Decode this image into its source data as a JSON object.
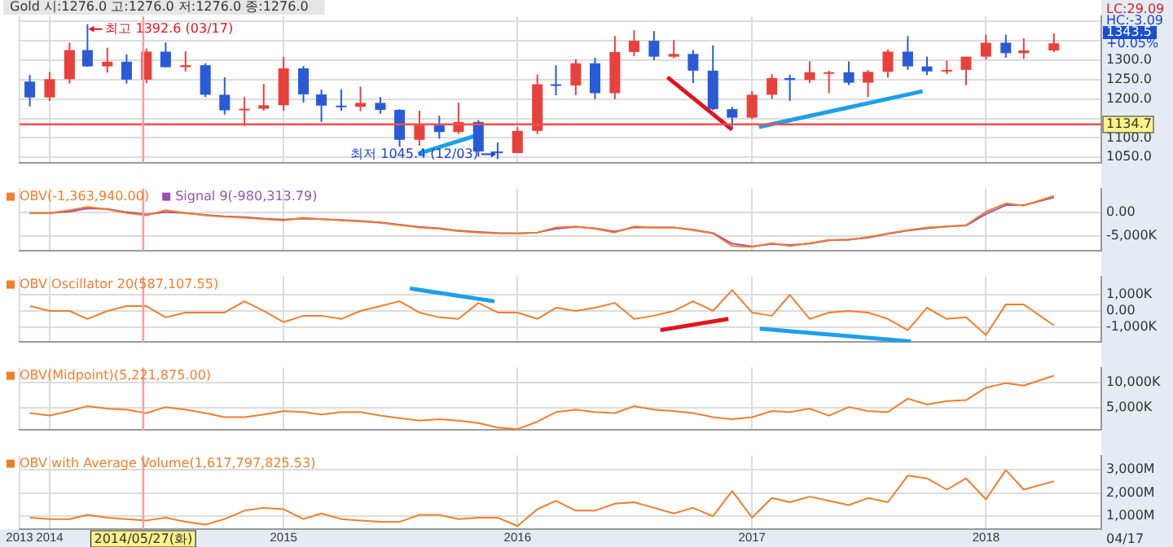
{
  "chart_data": [
    {
      "type": "candlestick",
      "title": "Gold 시:1276.0 고:1276.0 저:1276.0 종:1276.0",
      "x": [
        "2013-12",
        "2014-01",
        "2014-02",
        "2014-03",
        "2014-04",
        "2014-05",
        "2014-06",
        "2014-07",
        "2014-08",
        "2014-09",
        "2014-10",
        "2014-11",
        "2014-12",
        "2015-01",
        "2015-02",
        "2015-03",
        "2015-04",
        "2015-05",
        "2015-06",
        "2015-07",
        "2015-08",
        "2015-09",
        "2015-10",
        "2015-11",
        "2015-12",
        "2016-01",
        "2016-02",
        "2016-03",
        "2016-04",
        "2016-05",
        "2016-06",
        "2016-07",
        "2016-08",
        "2016-09",
        "2016-10",
        "2016-11",
        "2016-12",
        "2017-01",
        "2017-02",
        "2017-03",
        "2017-04",
        "2017-05",
        "2017-06",
        "2017-07",
        "2017-08",
        "2017-09",
        "2017-10",
        "2017-11",
        "2017-12",
        "2018-01",
        "2018-02",
        "2018-03",
        "2018-04-17"
      ],
      "ohlc": [
        [
          1245,
          1262,
          1181,
          1204
        ],
        [
          1204,
          1270,
          1195,
          1251
        ],
        [
          1251,
          1345,
          1240,
          1326
        ],
        [
          1326,
          1392.6,
          1283,
          1284
        ],
        [
          1284,
          1332,
          1268,
          1296
        ],
        [
          1296,
          1315,
          1240,
          1250
        ],
        [
          1250,
          1330,
          1241,
          1322
        ],
        [
          1322,
          1346,
          1281,
          1282
        ],
        [
          1282,
          1323,
          1271,
          1287
        ],
        [
          1287,
          1292,
          1205,
          1211
        ],
        [
          1211,
          1256,
          1160,
          1171
        ],
        [
          1171,
          1205,
          1130,
          1175
        ],
        [
          1175,
          1239,
          1170,
          1184
        ],
        [
          1184,
          1308,
          1170,
          1279
        ],
        [
          1279,
          1285,
          1191,
          1212
        ],
        [
          1212,
          1224,
          1141,
          1183
        ],
        [
          1183,
          1225,
          1170,
          1180
        ],
        [
          1180,
          1232,
          1169,
          1190
        ],
        [
          1190,
          1205,
          1162,
          1172
        ],
        [
          1172,
          1174,
          1077,
          1095
        ],
        [
          1095,
          1170,
          1080,
          1132
        ],
        [
          1132,
          1157,
          1098,
          1115
        ],
        [
          1115,
          1191,
          1110,
          1141
        ],
        [
          1141,
          1146,
          1052,
          1065
        ],
        [
          1065,
          1088,
          1045.4,
          1061
        ],
        [
          1061,
          1128,
          1061,
          1118
        ],
        [
          1118,
          1263,
          1110,
          1238
        ],
        [
          1238,
          1287,
          1210,
          1235
        ],
        [
          1235,
          1303,
          1210,
          1292
        ],
        [
          1292,
          1306,
          1200,
          1215
        ],
        [
          1215,
          1362,
          1200,
          1321
        ],
        [
          1321,
          1377,
          1310,
          1350
        ],
        [
          1350,
          1375,
          1300,
          1309
        ],
        [
          1309,
          1352,
          1305,
          1316
        ],
        [
          1316,
          1326,
          1241,
          1273
        ],
        [
          1273,
          1338,
          1171,
          1174
        ],
        [
          1174,
          1180,
          1124,
          1152
        ],
        [
          1152,
          1220,
          1148,
          1211
        ],
        [
          1211,
          1264,
          1200,
          1254
        ],
        [
          1254,
          1263,
          1195,
          1249
        ],
        [
          1249,
          1297,
          1241,
          1269
        ],
        [
          1269,
          1273,
          1215,
          1269
        ],
        [
          1269,
          1297,
          1236,
          1242
        ],
        [
          1242,
          1275,
          1205,
          1270
        ],
        [
          1270,
          1327,
          1255,
          1322
        ],
        [
          1322,
          1362,
          1275,
          1284
        ],
        [
          1284,
          1309,
          1262,
          1271
        ],
        [
          1271,
          1299,
          1264,
          1275
        ],
        [
          1275,
          1309,
          1236,
          1309
        ],
        [
          1309,
          1366,
          1302,
          1345
        ],
        [
          1345,
          1366,
          1306,
          1318
        ],
        [
          1318,
          1356,
          1303,
          1325
        ],
        [
          1325,
          1369,
          1321,
          1343.5
        ]
      ],
      "colors": [
        "#2a5bd7",
        "#e8413c",
        "#e8413c",
        "#2a5bd7",
        "#e8413c",
        "#2a5bd7",
        "#e8413c",
        "#2a5bd7",
        "#e8413c",
        "#2a5bd7",
        "#2a5bd7",
        "#e8413c",
        "#e8413c",
        "#e8413c",
        "#2a5bd7",
        "#2a5bd7",
        "#2a5bd7",
        "#e8413c",
        "#2a5bd7",
        "#2a5bd7",
        "#e8413c",
        "#2a5bd7",
        "#e8413c",
        "#2a5bd7",
        "#2a5bd7",
        "#e8413c",
        "#e8413c",
        "#2a5bd7",
        "#e8413c",
        "#2a5bd7",
        "#e8413c",
        "#e8413c",
        "#2a5bd7",
        "#e8413c",
        "#2a5bd7",
        "#2a5bd7",
        "#2a5bd7",
        "#e8413c",
        "#e8413c",
        "#2a5bd7",
        "#e8413c",
        "#e8413c",
        "#2a5bd7",
        "#e8413c",
        "#e8413c",
        "#2a5bd7",
        "#2a5bd7",
        "#e8413c",
        "#e8413c",
        "#e8413c",
        "#2a5bd7",
        "#e8413c",
        "#e8413c"
      ],
      "series": [
        {
          "type": "line",
          "color": "#1ea0e6",
          "x": [
            "2015-07-30",
            "2015-10-28"
          ],
          "values": [
            1059,
            1106
          ]
        },
        {
          "type": "line",
          "color": "#e0141e",
          "x": [
            "2016-08-22",
            "2016-12-01"
          ],
          "values": [
            1256,
            1121
          ]
        },
        {
          "type": "line",
          "color": "#1ea0e6",
          "x": [
            "2017-01-12",
            "2017-09-24"
          ],
          "values": [
            1128,
            1220
          ]
        }
      ],
      "xlim": [
        "2013-11-15",
        "2018-06-30"
      ],
      "xticks": [
        {
          "value": "2013-11-15",
          "label": null
        },
        {
          "value": "2014-01-01",
          "label": null
        },
        {
          "value": "2015-01-01",
          "label": null
        },
        {
          "value": "2016-01-01",
          "label": null
        },
        {
          "value": "2017-01-01",
          "label": null
        },
        {
          "value": "2018-01-01",
          "label": null
        }
      ],
      "ylim": [
        1035,
        1413
      ],
      "yticks": [
        {
          "value": 1050,
          "label": "1050.0"
        },
        {
          "value": 1100,
          "label": "1100.0"
        },
        {
          "value": 1150,
          "label": null
        },
        {
          "value": 1200,
          "label": "1200.0"
        },
        {
          "value": 1250,
          "label": "1250.0"
        },
        {
          "value": 1300,
          "label": "1300.0"
        },
        {
          "value": 1350,
          "label": null
        },
        {
          "value": 1400,
          "label": null
        }
      ],
      "ref_lines": [
        {
          "axis": "y",
          "value": 1134.7,
          "label": "1134.7",
          "color": "#f05050"
        },
        {
          "axis": "x",
          "value": "2014-05-27",
          "color": "#f5a0a0"
        }
      ],
      "annotations": [
        {
          "text": "최고 1392.6 (03/17)",
          "x": "2014-03",
          "y": 1392.6
        },
        {
          "text": "최저 1045.4 (12/03)",
          "x": "2015-12",
          "y": 1045.4
        },
        "LC:29.09",
        "HC:-3.09",
        "1343.5",
        "+0.05%"
      ],
      "grid": true,
      "tick_labels": "y"
    },
    {
      "type": "line",
      "x": [
        "2013-12",
        "2014-01",
        "2014-02",
        "2014-03",
        "2014-04",
        "2014-05",
        "2014-06",
        "2014-07",
        "2014-08",
        "2014-09",
        "2014-10",
        "2014-11",
        "2014-12",
        "2015-01",
        "2015-02",
        "2015-03",
        "2015-04",
        "2015-05",
        "2015-06",
        "2015-07",
        "2015-08",
        "2015-09",
        "2015-10",
        "2015-11",
        "2015-12",
        "2016-01",
        "2016-02",
        "2016-03",
        "2016-04",
        "2016-05",
        "2016-06",
        "2016-07",
        "2016-08",
        "2016-09",
        "2016-10",
        "2016-11",
        "2016-12",
        "2017-01",
        "2017-02",
        "2017-03",
        "2017-04",
        "2017-05",
        "2017-06",
        "2017-07",
        "2017-08",
        "2017-09",
        "2017-10",
        "2017-11",
        "2017-12",
        "2018-01",
        "2018-02",
        "2018-03",
        "2018-04-17"
      ],
      "series": [
        {
          "name": "OBV(-1,363,940.00)",
          "color": "#f07e2c",
          "values": [
            -100,
            -100,
            500,
            1200,
            700,
            -100,
            -600,
            500,
            -100,
            -600,
            -900,
            -1100,
            -1400,
            -1700,
            -1100,
            -1400,
            -1700,
            -1900,
            -2200,
            -2700,
            -3200,
            -3500,
            -4000,
            -4300,
            -4500,
            -4500,
            -4300,
            -3200,
            -3000,
            -3500,
            -4300,
            -3000,
            -3200,
            -3200,
            -3800,
            -4500,
            -7200,
            -7400,
            -6600,
            -7200,
            -6600,
            -5900,
            -5900,
            -5300,
            -4500,
            -3800,
            -3200,
            -3000,
            -2700,
            200,
            2000,
            1500,
            3600
          ]
        },
        {
          "name": "Signal 9(-980,313.79)",
          "color": "#9b4fb0",
          "values": [
            -100,
            -100,
            200,
            900,
            800,
            100,
            -400,
            100,
            -100,
            -500,
            -800,
            -1000,
            -1300,
            -1500,
            -1300,
            -1400,
            -1600,
            -1800,
            -2100,
            -2600,
            -3100,
            -3400,
            -3900,
            -4200,
            -4400,
            -4500,
            -4300,
            -3500,
            -3100,
            -3400,
            -4100,
            -3200,
            -3200,
            -3200,
            -3700,
            -4400,
            -6700,
            -7300,
            -6800,
            -7000,
            -6700,
            -6000,
            -5800,
            -5400,
            -4600,
            -3900,
            -3400,
            -3000,
            -2800,
            -300,
            1600,
            1600,
            3300
          ]
        }
      ],
      "xlim": [
        "2013-11-15",
        "2018-06-30"
      ],
      "xticks": [
        {
          "value": "2013-11-15",
          "label": null
        },
        {
          "value": "2014-01-01",
          "label": null
        },
        {
          "value": "2015-01-01",
          "label": null
        },
        {
          "value": "2016-01-01",
          "label": null
        },
        {
          "value": "2017-01-01",
          "label": null
        },
        {
          "value": "2018-01-01",
          "label": null
        }
      ],
      "ylim": [
        -8300,
        5200
      ],
      "yticks": [
        {
          "value": -5000,
          "label": "-5,000K"
        },
        {
          "value": 0,
          "label": "0.00"
        }
      ],
      "ref_lines": [
        {
          "axis": "x",
          "value": "2014-05-27",
          "color": "#f5a0a0"
        }
      ],
      "legend": "top left",
      "grid": true,
      "tick_labels": "y"
    },
    {
      "type": "line",
      "x": [
        "2013-12",
        "2014-01",
        "2014-02",
        "2014-03",
        "2014-04",
        "2014-05",
        "2014-06",
        "2014-07",
        "2014-08",
        "2014-09",
        "2014-10",
        "2014-11",
        "2014-12",
        "2015-01",
        "2015-02",
        "2015-03",
        "2015-04",
        "2015-05",
        "2015-06",
        "2015-07",
        "2015-08",
        "2015-09",
        "2015-10",
        "2015-11",
        "2015-12",
        "2016-01",
        "2016-02",
        "2016-03",
        "2016-04",
        "2016-05",
        "2016-06",
        "2016-07",
        "2016-08",
        "2016-09",
        "2016-10",
        "2016-11",
        "2016-12",
        "2017-01",
        "2017-02",
        "2017-03",
        "2017-04",
        "2017-05",
        "2017-06",
        "2017-07",
        "2017-08",
        "2017-09",
        "2017-10",
        "2017-11",
        "2017-12",
        "2018-01",
        "2018-02",
        "2018-03",
        "2018-04-17"
      ],
      "series": [
        {
          "name": "OBV Oscillator 20(587,107.55)",
          "color": "#f07e2c",
          "values": [
            300,
            0,
            0,
            -500,
            0,
            300,
            300,
            -400,
            -100,
            -100,
            -100,
            600,
            0,
            -700,
            -300,
            -300,
            -500,
            0,
            300,
            600,
            -100,
            -400,
            -500,
            500,
            -100,
            -100,
            -500,
            200,
            0,
            200,
            500,
            -500,
            -300,
            0,
            600,
            0,
            1300,
            -100,
            -300,
            1000,
            -500,
            -100,
            0,
            -100,
            -500,
            -1200,
            200,
            -500,
            -400,
            -1500,
            400,
            400,
            -900
          ]
        },
        {
          "type": "line",
          "color": "#1ea0e6",
          "x": [
            "2015-07-17",
            "2015-11-26"
          ],
          "values": [
            1400,
            600
          ]
        },
        {
          "type": "line",
          "color": "#e0141e",
          "x": [
            "2016-08-11",
            "2016-11-25"
          ],
          "values": [
            -1200,
            -500
          ]
        },
        {
          "type": "line",
          "color": "#1ea0e6",
          "x": [
            "2017-01-13",
            "2017-09-06"
          ],
          "values": [
            -1100,
            -1900
          ]
        }
      ],
      "xlim": [
        "2013-11-15",
        "2018-06-30"
      ],
      "xticks": [
        {
          "value": "2013-11-15",
          "label": null
        },
        {
          "value": "2014-01-01",
          "label": null
        },
        {
          "value": "2015-01-01",
          "label": null
        },
        {
          "value": "2016-01-01",
          "label": null
        },
        {
          "value": "2017-01-01",
          "label": null
        },
        {
          "value": "2018-01-01",
          "label": null
        }
      ],
      "ylim": [
        -1950,
        2150
      ],
      "yticks": [
        {
          "value": -1000,
          "label": "-1,000K"
        },
        {
          "value": 0,
          "label": "0.00"
        },
        {
          "value": 1000,
          "label": "1,000K"
        }
      ],
      "ref_lines": [
        {
          "axis": "x",
          "value": "2014-05-27",
          "color": "#f5a0a0"
        }
      ],
      "legend": "top left",
      "grid": true,
      "tick_labels": "y"
    },
    {
      "type": "line",
      "x": [
        "2013-12",
        "2014-01",
        "2014-02",
        "2014-03",
        "2014-04",
        "2014-05",
        "2014-06",
        "2014-07",
        "2014-08",
        "2014-09",
        "2014-10",
        "2014-11",
        "2014-12",
        "2015-01",
        "2015-02",
        "2015-03",
        "2015-04",
        "2015-05",
        "2015-06",
        "2015-07",
        "2015-08",
        "2015-09",
        "2015-10",
        "2015-11",
        "2015-12",
        "2016-01",
        "2016-02",
        "2016-03",
        "2016-04",
        "2016-05",
        "2016-06",
        "2016-07",
        "2016-08",
        "2016-09",
        "2016-10",
        "2016-11",
        "2016-12",
        "2017-01",
        "2017-02",
        "2017-03",
        "2017-04",
        "2017-05",
        "2017-06",
        "2017-07",
        "2017-08",
        "2017-09",
        "2017-10",
        "2017-11",
        "2017-12",
        "2018-01",
        "2018-02",
        "2018-03",
        "2018-04-17"
      ],
      "series": [
        {
          "name": "OBV(Midpoint)(5,221,875.00)",
          "color": "#f07e2c",
          "values": [
            3900,
            3400,
            4300,
            5300,
            4800,
            4600,
            3900,
            5100,
            4600,
            3900,
            3100,
            3100,
            3600,
            4300,
            4100,
            3600,
            4100,
            4100,
            3400,
            2900,
            2400,
            2700,
            2400,
            1900,
            1000,
            700,
            2200,
            4100,
            4600,
            4100,
            3900,
            5300,
            4600,
            4300,
            3900,
            3100,
            2700,
            3100,
            4300,
            4100,
            4800,
            3400,
            5100,
            4300,
            4100,
            6800,
            5600,
            6300,
            6500,
            9000,
            9900,
            9400,
            11400
          ]
        }
      ],
      "xlim": [
        "2013-11-15",
        "2018-06-30"
      ],
      "xticks": [
        {
          "value": "2013-11-15",
          "label": null
        },
        {
          "value": "2014-01-01",
          "label": null
        },
        {
          "value": "2015-01-01",
          "label": null
        },
        {
          "value": "2016-01-01",
          "label": null
        },
        {
          "value": "2017-01-01",
          "label": null
        },
        {
          "value": "2018-01-01",
          "label": null
        }
      ],
      "ylim": [
        500,
        13000
      ],
      "yticks": [
        {
          "value": 5000,
          "label": "5,000K"
        },
        {
          "value": 10000,
          "label": "10,000K"
        }
      ],
      "ref_lines": [
        {
          "axis": "x",
          "value": "2014-05-27",
          "color": "#f5a0a0"
        }
      ],
      "legend": "top left",
      "grid": true,
      "tick_labels": "y"
    },
    {
      "type": "line",
      "x": [
        "2013-12",
        "2014-01",
        "2014-02",
        "2014-03",
        "2014-04",
        "2014-05",
        "2014-06",
        "2014-07",
        "2014-08",
        "2014-09",
        "2014-10",
        "2014-11",
        "2014-12",
        "2015-01",
        "2015-02",
        "2015-03",
        "2015-04",
        "2015-05",
        "2015-06",
        "2015-07",
        "2015-08",
        "2015-09",
        "2015-10",
        "2015-11",
        "2015-12",
        "2016-01",
        "2016-02",
        "2016-03",
        "2016-04",
        "2016-05",
        "2016-06",
        "2016-07",
        "2016-08",
        "2016-09",
        "2016-10",
        "2016-11",
        "2016-12",
        "2017-01",
        "2017-02",
        "2017-03",
        "2017-04",
        "2017-05",
        "2017-06",
        "2017-07",
        "2017-08",
        "2017-09",
        "2017-10",
        "2017-11",
        "2017-12",
        "2018-01",
        "2018-02",
        "2018-03",
        "2018-04-17"
      ],
      "series": [
        {
          "name": "OBV with Average Volume(1,617,797,825.53)",
          "color": "#f07e2c",
          "values": [
            940,
            880,
            880,
            1060,
            940,
            880,
            820,
            940,
            760,
            640,
            880,
            1240,
            1360,
            1300,
            880,
            1120,
            880,
            820,
            760,
            760,
            1060,
            1060,
            880,
            940,
            940,
            580,
            1300,
            1660,
            1240,
            1240,
            1540,
            1600,
            1360,
            1120,
            1360,
            1000,
            2080,
            940,
            1780,
            1600,
            1840,
            1660,
            1480,
            1780,
            1600,
            2740,
            2620,
            2140,
            2620,
            1720,
            2980,
            2140,
            2500
          ]
        }
      ],
      "xlim": [
        "2013-11-15",
        "2018-06-30"
      ],
      "xticks": [
        {
          "value": "2013-11-15",
          "label": "2013"
        },
        {
          "value": "2014-01-01",
          "label": "2014"
        },
        {
          "value": "2015-01-01",
          "label": "2015"
        },
        {
          "value": "2016-01-01",
          "label": "2016"
        },
        {
          "value": "2017-01-01",
          "label": "2017"
        },
        {
          "value": "2018-01-01",
          "label": "2018"
        }
      ],
      "ylim": [
        450,
        3600
      ],
      "yticks": [
        {
          "value": 1000,
          "label": "1,000M"
        },
        {
          "value": 2000,
          "label": "2,000M"
        },
        {
          "value": 3000,
          "label": "3,000M"
        }
      ],
      "ref_lines": [
        {
          "axis": "x",
          "value": "2014-05-27",
          "label": "2014/05/27(화)",
          "color": "#f5a0a0"
        }
      ],
      "annotations": [
        "04/17"
      ],
      "legend": "top left",
      "grid": true
    }
  ]
}
